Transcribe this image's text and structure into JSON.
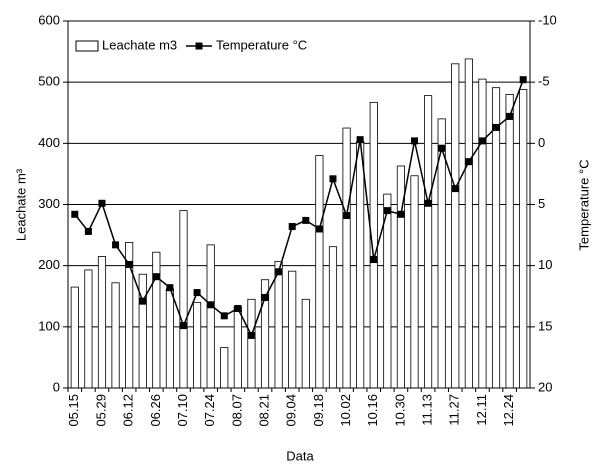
{
  "chart_data": {
    "type": "bar_line",
    "x_label": "Data",
    "y_label": "Leachate m³",
    "y2_label": "Temperature °C",
    "categories": [
      "05.15",
      null,
      "05.29",
      null,
      "06.12",
      null,
      "06.26",
      null,
      "07.10",
      null,
      "07.24",
      null,
      "08.07",
      null,
      "08.21",
      null,
      "09.04",
      null,
      "09.18",
      null,
      "10.02",
      null,
      "10.16",
      null,
      "10.30",
      null,
      "11.13",
      null,
      "11.27",
      null,
      "12.11",
      null,
      "12.24",
      null
    ],
    "series": [
      {
        "name": "Leachate m3",
        "type": "bar",
        "color": "#ffffff",
        "values": [
          165,
          193,
          215,
          172,
          238,
          186,
          222,
          162,
          290,
          140,
          234,
          66,
          133,
          145,
          177,
          207,
          191,
          145,
          380,
          231,
          425,
          403,
          467,
          317,
          363,
          347,
          478,
          440,
          530,
          538,
          505,
          491,
          480,
          488
        ]
      },
      {
        "name": "Temperature °C",
        "type": "line",
        "axis": "y2",
        "color": "#000000",
        "values": [
          5.8,
          7.2,
          4.9,
          8.3,
          9.9,
          12.9,
          10.9,
          11.8,
          14.9,
          12.2,
          13.2,
          14.1,
          13.5,
          15.7,
          12.6,
          10.5,
          6.8,
          6.3,
          7.0,
          2.9,
          5.9,
          -0.3,
          9.5,
          5.5,
          5.8,
          -0.2,
          4.9,
          0.4,
          3.7,
          1.5,
          -0.2,
          -1.3,
          -2.2,
          -5.2
        ]
      }
    ],
    "ylim": [
      0,
      600
    ],
    "yticks": [
      0,
      100,
      200,
      300,
      400,
      500,
      600
    ],
    "y2lim": [
      20,
      -10
    ],
    "y2ticks": [
      20,
      15,
      10,
      5,
      0,
      -5,
      -10
    ],
    "grid": true,
    "legend": "top-left"
  }
}
